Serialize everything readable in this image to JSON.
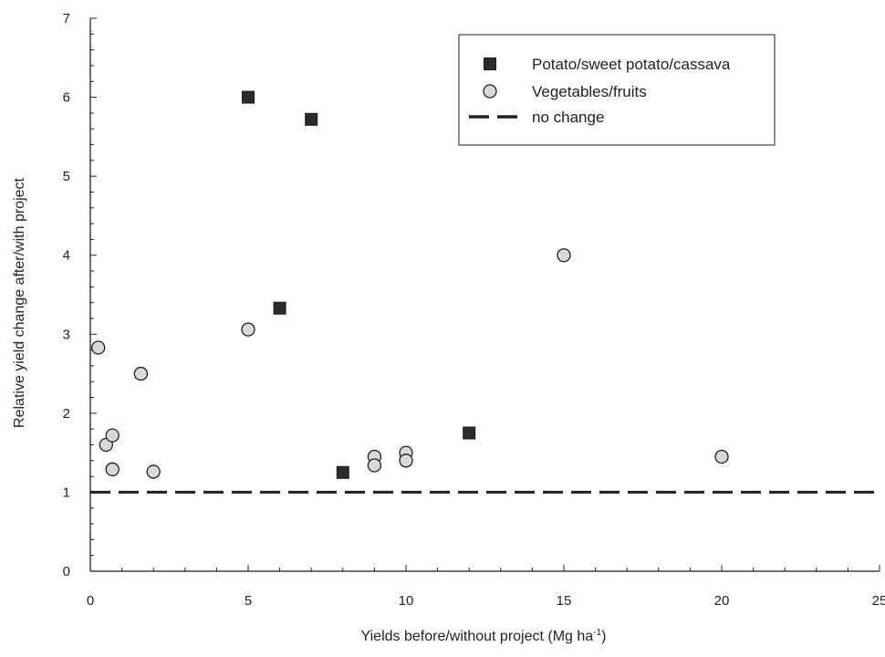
{
  "chart_data": {
    "type": "scatter",
    "xlabel": "Yields before/without project (Mg ha",
    "xlabel_sup": "-1",
    "xlabel_end": ")",
    "ylabel": "Relative yield change after/with project",
    "xlim": [
      0,
      25
    ],
    "ylim": [
      0,
      7
    ],
    "xticks": [
      0,
      5,
      10,
      15,
      20,
      25
    ],
    "yticks": [
      0,
      1,
      2,
      3,
      4,
      5,
      6,
      7
    ],
    "grid": false,
    "legend_position": "top-right",
    "series": [
      {
        "name": "Potato/sweet potato/cassava",
        "marker": "square",
        "color": "#2b2b2b",
        "points": [
          [
            5,
            6.0
          ],
          [
            7,
            5.72
          ],
          [
            6,
            3.33
          ],
          [
            8,
            1.25
          ],
          [
            12,
            1.75
          ]
        ]
      },
      {
        "name": "Vegetables/fruits",
        "marker": "circle",
        "color": "#d9d9d9",
        "points": [
          [
            0.25,
            2.83
          ],
          [
            0.5,
            1.6
          ],
          [
            0.7,
            1.72
          ],
          [
            0.7,
            1.29
          ],
          [
            1.6,
            2.5
          ],
          [
            2.0,
            1.26
          ],
          [
            5,
            3.06
          ],
          [
            9,
            1.45
          ],
          [
            9,
            1.34
          ],
          [
            10,
            1.5
          ],
          [
            10,
            1.4
          ],
          [
            15,
            4.0
          ],
          [
            20,
            1.45
          ]
        ]
      }
    ],
    "reference_lines": [
      {
        "name": "no change",
        "y": 1,
        "style": "dashed",
        "color": "#231f20"
      }
    ]
  }
}
